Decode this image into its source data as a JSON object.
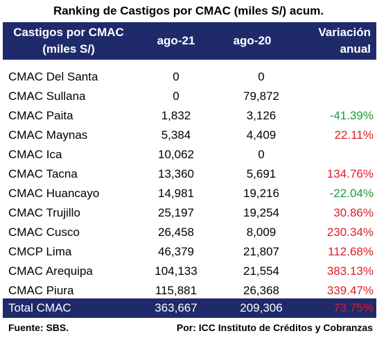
{
  "title": "Ranking de Castigos por CMAC (miles S/) acum.",
  "header": {
    "col0_line1": "Castigos por CMAC",
    "col0_line2": "(miles S/)",
    "col1": "ago-21",
    "col2": "ago-20",
    "col3_line1": "Variación",
    "col3_line2": "anual"
  },
  "rows": [
    {
      "name": "CMAC Del Santa",
      "ago21": "0",
      "ago20": "0",
      "var": ""
    },
    {
      "name": "CMAC Sullana",
      "ago21": "0",
      "ago20": "79,872",
      "var": ""
    },
    {
      "name": "CMAC Paita",
      "ago21": "1,832",
      "ago20": "3,126",
      "var": "-41.39%"
    },
    {
      "name": "CMAC Maynas",
      "ago21": "5,384",
      "ago20": "4,409",
      "var": "22.11%"
    },
    {
      "name": "CMAC Ica",
      "ago21": "10,062",
      "ago20": "0",
      "var": ""
    },
    {
      "name": "CMAC Tacna",
      "ago21": "13,360",
      "ago20": "5,691",
      "var": "134.76%"
    },
    {
      "name": "CMAC Huancayo",
      "ago21": "14,981",
      "ago20": "19,216",
      "var": "-22.04%"
    },
    {
      "name": "CMAC Trujillo",
      "ago21": "25,197",
      "ago20": "19,254",
      "var": "30.86%"
    },
    {
      "name": "CMAC Cusco",
      "ago21": "26,458",
      "ago20": "8,009",
      "var": "230.34%"
    },
    {
      "name": "CMCP Lima",
      "ago21": "46,379",
      "ago20": "21,807",
      "var": "112.68%"
    },
    {
      "name": "CMAC Arequipa",
      "ago21": "104,133",
      "ago20": "21,554",
      "var": "383.13%"
    },
    {
      "name": "CMAC Piura",
      "ago21": "115,881",
      "ago20": "26,368",
      "var": "339.47%"
    }
  ],
  "total": {
    "name": "Total CMAC",
    "ago21": "363,667",
    "ago20": "209,306",
    "var": "73.75%"
  },
  "footer": {
    "source": "Fuente: SBS.",
    "credit": "Por: ICC Instituto de Créditos y Cobranzas"
  },
  "colors": {
    "header_bg": "#1f2a6b",
    "negative": "#1a9a3a",
    "positive": "#e01b24"
  }
}
